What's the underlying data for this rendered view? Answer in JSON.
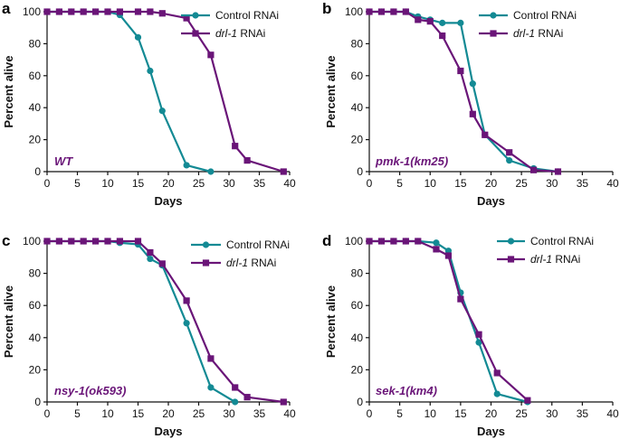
{
  "colors": {
    "control": "#138A94",
    "drl1": "#6A1578",
    "axis": "#111111"
  },
  "chart_data": [
    {
      "type": "line",
      "panel": "a",
      "strain_label": "WT",
      "strain_italic": false,
      "xlabel": "Days",
      "ylabel": "Percent alive",
      "xlim": [
        0,
        40
      ],
      "ylim": [
        0,
        100
      ],
      "xticks": [
        "0",
        "5",
        "10",
        "15",
        "20",
        "25",
        "30",
        "35",
        "40"
      ],
      "yticks": [
        "0",
        "20",
        "40",
        "60",
        "80",
        "100"
      ],
      "legend_position": "top-right",
      "series": [
        {
          "name": "Control RNAi",
          "name_italic_part": "",
          "name_plain_part": "Control RNAi",
          "color_key": "control",
          "marker": "circle",
          "points": [
            [
              0,
              100
            ],
            [
              2,
              100
            ],
            [
              4,
              100
            ],
            [
              6,
              100
            ],
            [
              8,
              100
            ],
            [
              10,
              100
            ],
            [
              12,
              98
            ],
            [
              15,
              84
            ],
            [
              17,
              63
            ],
            [
              19,
              38
            ],
            [
              23,
              4
            ],
            [
              27,
              0
            ]
          ]
        },
        {
          "name": "drl-1 RNAi",
          "name_italic_part": "drl-1",
          "name_plain_part": " RNAi",
          "color_key": "drl1",
          "marker": "square",
          "points": [
            [
              0,
              100
            ],
            [
              2,
              100
            ],
            [
              4,
              100
            ],
            [
              6,
              100
            ],
            [
              8,
              100
            ],
            [
              10,
              100
            ],
            [
              12,
              100
            ],
            [
              15,
              100
            ],
            [
              17,
              100
            ],
            [
              19,
              99
            ],
            [
              23,
              96
            ],
            [
              27,
              73
            ],
            [
              31,
              16
            ],
            [
              33,
              7
            ],
            [
              39,
              0
            ]
          ]
        }
      ]
    },
    {
      "type": "line",
      "panel": "b",
      "strain_label": "pmk-1(km25)",
      "strain_italic": true,
      "xlabel": "Days",
      "ylabel": "Percent alive",
      "xlim": [
        0,
        40
      ],
      "ylim": [
        0,
        100
      ],
      "xticks": [
        "0",
        "5",
        "10",
        "15",
        "20",
        "25",
        "30",
        "35",
        "40"
      ],
      "yticks": [
        "0",
        "20",
        "40",
        "60",
        "80",
        "100"
      ],
      "legend_position": "top-right",
      "series": [
        {
          "name": "Control RNAi",
          "name_italic_part": "",
          "name_plain_part": "Control RNAi",
          "color_key": "control",
          "marker": "circle",
          "points": [
            [
              0,
              100
            ],
            [
              2,
              100
            ],
            [
              4,
              100
            ],
            [
              6,
              100
            ],
            [
              8,
              97
            ],
            [
              10,
              95
            ],
            [
              12,
              93
            ],
            [
              15,
              93
            ],
            [
              17,
              55
            ],
            [
              19,
              23
            ],
            [
              23,
              7
            ],
            [
              27,
              2
            ],
            [
              31,
              0
            ]
          ]
        },
        {
          "name": "drl-1 RNAi",
          "name_italic_part": "drl-1",
          "name_plain_part": " RNAi",
          "color_key": "drl1",
          "marker": "square",
          "points": [
            [
              0,
              100
            ],
            [
              2,
              100
            ],
            [
              4,
              100
            ],
            [
              6,
              100
            ],
            [
              8,
              95
            ],
            [
              10,
              94
            ],
            [
              12,
              85
            ],
            [
              15,
              63
            ],
            [
              17,
              36
            ],
            [
              19,
              23
            ],
            [
              23,
              12
            ],
            [
              27,
              1
            ],
            [
              31,
              0
            ]
          ]
        }
      ]
    },
    {
      "type": "line",
      "panel": "c",
      "strain_label": "nsy-1(ok593)",
      "strain_italic": true,
      "xlabel": "Days",
      "ylabel": "Percent alive",
      "xlim": [
        0,
        40
      ],
      "ylim": [
        0,
        100
      ],
      "xticks": [
        "0",
        "5",
        "10",
        "15",
        "20",
        "25",
        "30",
        "35",
        "40"
      ],
      "yticks": [
        "0",
        "20",
        "40",
        "60",
        "80",
        "100"
      ],
      "legend_position": "top-right",
      "series": [
        {
          "name": "Control RNAi",
          "name_italic_part": "",
          "name_plain_part": "Control RNAi",
          "color_key": "control",
          "marker": "circle",
          "points": [
            [
              0,
              100
            ],
            [
              2,
              100
            ],
            [
              4,
              100
            ],
            [
              6,
              100
            ],
            [
              8,
              100
            ],
            [
              10,
              100
            ],
            [
              12,
              99
            ],
            [
              15,
              98
            ],
            [
              17,
              89
            ],
            [
              19,
              85
            ],
            [
              23,
              49
            ],
            [
              27,
              9
            ],
            [
              31,
              0
            ]
          ]
        },
        {
          "name": "drl-1 RNAi",
          "name_italic_part": "drl-1",
          "name_plain_part": " RNAi",
          "color_key": "drl1",
          "marker": "square",
          "points": [
            [
              0,
              100
            ],
            [
              2,
              100
            ],
            [
              4,
              100
            ],
            [
              6,
              100
            ],
            [
              8,
              100
            ],
            [
              10,
              100
            ],
            [
              12,
              100
            ],
            [
              15,
              100
            ],
            [
              17,
              93
            ],
            [
              19,
              86
            ],
            [
              23,
              63
            ],
            [
              27,
              27
            ],
            [
              31,
              9
            ],
            [
              33,
              3
            ],
            [
              39,
              0
            ]
          ]
        }
      ]
    },
    {
      "type": "line",
      "panel": "d",
      "strain_label": "sek-1(km4)",
      "strain_italic": true,
      "xlabel": "Days",
      "ylabel": "Percent alive",
      "xlim": [
        0,
        40
      ],
      "ylim": [
        0,
        100
      ],
      "xticks": [
        "0",
        "5",
        "10",
        "15",
        "20",
        "25",
        "30",
        "35",
        "40"
      ],
      "yticks": [
        "0",
        "20",
        "40",
        "60",
        "80",
        "100"
      ],
      "legend_position": "top-right",
      "series": [
        {
          "name": "Control RNAi",
          "name_italic_part": "",
          "name_plain_part": "Control RNAi",
          "color_key": "control",
          "marker": "circle",
          "points": [
            [
              0,
              100
            ],
            [
              2,
              100
            ],
            [
              4,
              100
            ],
            [
              6,
              100
            ],
            [
              8,
              100
            ],
            [
              11,
              99
            ],
            [
              13,
              94
            ],
            [
              15,
              68
            ],
            [
              18,
              37
            ],
            [
              21,
              5
            ],
            [
              26,
              0
            ]
          ]
        },
        {
          "name": "drl-1 RNAi",
          "name_italic_part": "drl-1",
          "name_plain_part": " RNAi",
          "color_key": "drl1",
          "marker": "square",
          "points": [
            [
              0,
              100
            ],
            [
              2,
              100
            ],
            [
              4,
              100
            ],
            [
              6,
              100
            ],
            [
              8,
              100
            ],
            [
              11,
              95
            ],
            [
              13,
              91
            ],
            [
              15,
              64
            ],
            [
              18,
              42
            ],
            [
              21,
              18
            ],
            [
              26,
              1
            ]
          ]
        }
      ]
    }
  ]
}
